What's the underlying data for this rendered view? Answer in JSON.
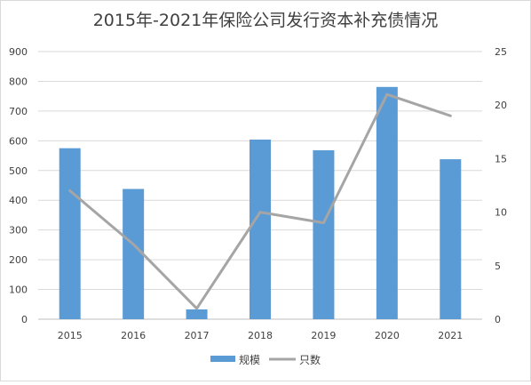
{
  "chart_data": {
    "type": "bar",
    "title": "2015年-2021年保险公司发行资本补充债情况",
    "categories": [
      "2015",
      "2016",
      "2017",
      "2018",
      "2019",
      "2020",
      "2021"
    ],
    "series": [
      {
        "name": "规模",
        "type": "bar",
        "axis": "left",
        "color": "#5b9bd5",
        "values": [
          575,
          438,
          33,
          604,
          568,
          781,
          538
        ]
      },
      {
        "name": "只数",
        "type": "line",
        "axis": "right",
        "color": "#a5a5a5",
        "values": [
          12,
          7,
          1,
          10,
          9,
          21,
          19
        ]
      }
    ],
    "y_left": {
      "min": 0,
      "max": 900,
      "ticks": [
        "0",
        "100",
        "200",
        "300",
        "400",
        "500",
        "600",
        "700",
        "800",
        "900"
      ]
    },
    "y_right": {
      "min": 0,
      "max": 25,
      "ticks": [
        "0",
        "5",
        "10",
        "15",
        "20",
        "25"
      ]
    },
    "grid": true,
    "legend_position": "bottom"
  }
}
